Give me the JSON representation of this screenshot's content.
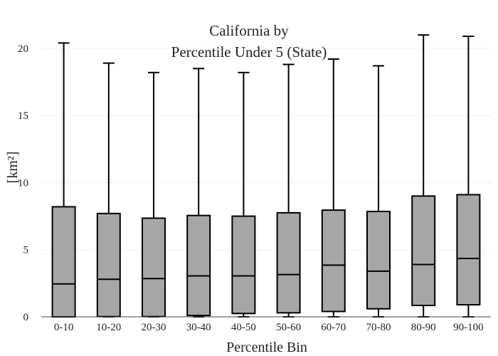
{
  "chart_data": {
    "type": "box",
    "title_lines": [
      "California  by",
      "Percentile Under 5 (State)"
    ],
    "xlabel": "Percentile Bin",
    "ylabel": "[km²]",
    "ylim": [
      0,
      21.8
    ],
    "yticks": [
      0,
      5,
      10,
      15,
      20
    ],
    "grid": true,
    "box_color": "#a6a6a6",
    "line_color": "#000000",
    "categories": [
      "0-10",
      "10-20",
      "20-30",
      "30-40",
      "40-50",
      "50-60",
      "60-70",
      "70-80",
      "80-90",
      "90-100"
    ],
    "boxes": [
      {
        "min": 0.0,
        "q1": 0.0,
        "median": 2.45,
        "q3": 8.2,
        "max": 20.4
      },
      {
        "min": 0.0,
        "q1": 0.02,
        "median": 2.8,
        "q3": 7.7,
        "max": 18.9
      },
      {
        "min": 0.0,
        "q1": 0.02,
        "median": 2.85,
        "q3": 7.35,
        "max": 18.2
      },
      {
        "min": 0.0,
        "q1": 0.1,
        "median": 3.05,
        "q3": 7.55,
        "max": 18.5
      },
      {
        "min": 0.0,
        "q1": 0.25,
        "median": 3.05,
        "q3": 7.5,
        "max": 18.2
      },
      {
        "min": 0.0,
        "q1": 0.3,
        "median": 3.15,
        "q3": 7.75,
        "max": 18.8
      },
      {
        "min": 0.0,
        "q1": 0.4,
        "median": 3.85,
        "q3": 7.95,
        "max": 19.2
      },
      {
        "min": 0.0,
        "q1": 0.6,
        "median": 3.4,
        "q3": 7.85,
        "max": 18.7
      },
      {
        "min": 0.0,
        "q1": 0.85,
        "median": 3.9,
        "q3": 9.0,
        "max": 21.0
      },
      {
        "min": 0.0,
        "q1": 0.9,
        "median": 4.35,
        "q3": 9.1,
        "max": 20.9
      }
    ]
  }
}
